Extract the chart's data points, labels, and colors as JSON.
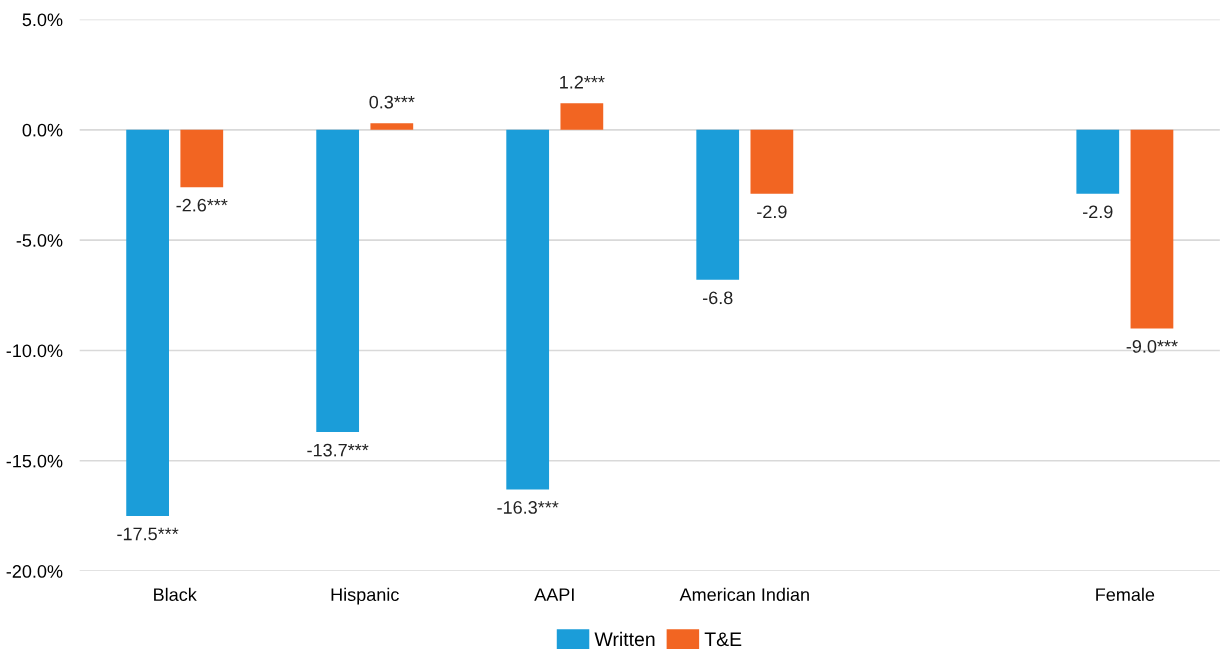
{
  "chart_data": {
    "type": "bar",
    "categories": [
      "Black",
      "Hispanic",
      "AAPI",
      "American Indian",
      null,
      "Female"
    ],
    "series": [
      {
        "name": "Written",
        "color": "#1b9dd9",
        "values": [
          -17.5,
          -13.7,
          -16.3,
          -6.8,
          null,
          -2.9
        ],
        "value_labels": [
          "-17.5***",
          "-13.7***",
          "-16.3***",
          "-6.8",
          null,
          "-2.9"
        ]
      },
      {
        "name": "T&E",
        "color": "#f26522",
        "values": [
          -2.6,
          0.3,
          1.2,
          -2.9,
          null,
          -9.0
        ],
        "value_labels": [
          "-2.6***",
          "0.3***",
          "1.2***",
          "-2.9",
          null,
          "-9.0***"
        ]
      }
    ],
    "ylim": [
      -20,
      5
    ],
    "yticks": [
      {
        "value": -20,
        "label": "-20.0%"
      },
      {
        "value": -15,
        "label": "-15.0%"
      },
      {
        "value": -10,
        "label": "-10.0%"
      },
      {
        "value": -5,
        "label": "-5.0%"
      },
      {
        "value": 0,
        "label": "0.0%"
      },
      {
        "value": 5,
        "label": "5.0%"
      }
    ],
    "grid": "y",
    "legend": "bottom"
  }
}
